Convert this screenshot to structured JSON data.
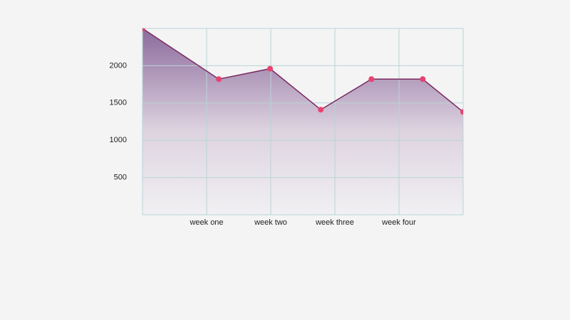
{
  "chart_data": {
    "type": "area",
    "x": [
      0,
      1.19,
      1.99,
      2.78,
      3.57,
      4.37,
      5
    ],
    "values": [
      2500,
      1820,
      1960,
      1410,
      1820,
      1820,
      1380
    ],
    "xlim": [
      0,
      5
    ],
    "xticks": [
      {
        "value": 1,
        "label": "week one"
      },
      {
        "value": 2,
        "label": "week two"
      },
      {
        "value": 3,
        "label": "week three"
      },
      {
        "value": 4,
        "label": "week four"
      }
    ],
    "ylim": [
      0,
      2500
    ],
    "yticks": [
      500,
      1000,
      1500,
      2000
    ],
    "grid": true,
    "color": "#7b2a62",
    "marker_color": "#e8436f"
  }
}
